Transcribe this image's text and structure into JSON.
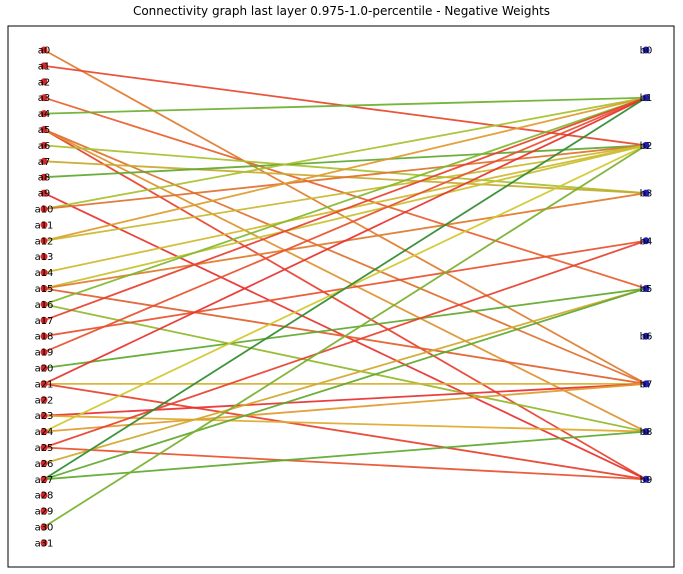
{
  "title": "Connectivity graph last layer 0.975-1.0-percentile - Negative Weights",
  "colors": {
    "left_node": "#d62728",
    "right_node": "#1f1fbf"
  },
  "left_nodes": [
    "a0",
    "a1",
    "a2",
    "a3",
    "a4",
    "a5",
    "a6",
    "a7",
    "a8",
    "a9",
    "a10",
    "a11",
    "a12",
    "a13",
    "a14",
    "a15",
    "a16",
    "a17",
    "a18",
    "a19",
    "a20",
    "a21",
    "a22",
    "a23",
    "a24",
    "a25",
    "a26",
    "a27",
    "a28",
    "a29",
    "a30",
    "a31"
  ],
  "right_nodes": [
    "b0",
    "b1",
    "b2",
    "b3",
    "b4",
    "b5",
    "b6",
    "b7",
    "b8",
    "b9"
  ],
  "edges": [
    {
      "from": 0,
      "to": 7,
      "color": "#e07b2c"
    },
    {
      "from": 1,
      "to": 2,
      "color": "#e8452c"
    },
    {
      "from": 3,
      "to": 5,
      "color": "#e8602c"
    },
    {
      "from": 4,
      "to": 1,
      "color": "#6ab02c"
    },
    {
      "from": 5,
      "to": 9,
      "color": "#e8402c"
    },
    {
      "from": 5,
      "to": 8,
      "color": "#e0902c"
    },
    {
      "from": 5,
      "to": 7,
      "color": "#e0702c"
    },
    {
      "from": 6,
      "to": 3,
      "color": "#a8c02c"
    },
    {
      "from": 7,
      "to": 3,
      "color": "#c8a82c"
    },
    {
      "from": 8,
      "to": 2,
      "color": "#5ea82c"
    },
    {
      "from": 9,
      "to": 9,
      "color": "#e8302c"
    },
    {
      "from": 10,
      "to": 1,
      "color": "#a8c02c"
    },
    {
      "from": 10,
      "to": 2,
      "color": "#e0702c"
    },
    {
      "from": 12,
      "to": 1,
      "color": "#e09a2c"
    },
    {
      "from": 12,
      "to": 2,
      "color": "#c8b82c"
    },
    {
      "from": 14,
      "to": 2,
      "color": "#d0b82c"
    },
    {
      "from": 15,
      "to": 2,
      "color": "#c8c02c"
    },
    {
      "from": 15,
      "to": 3,
      "color": "#e07a2c"
    },
    {
      "from": 15,
      "to": 7,
      "color": "#e0602c"
    },
    {
      "from": 16,
      "to": 1,
      "color": "#80b82c"
    },
    {
      "from": 16,
      "to": 8,
      "color": "#90b82c"
    },
    {
      "from": 17,
      "to": 1,
      "color": "#e8402c"
    },
    {
      "from": 18,
      "to": 4,
      "color": "#e8502c"
    },
    {
      "from": 19,
      "to": 1,
      "color": "#e8502c"
    },
    {
      "from": 20,
      "to": 5,
      "color": "#5ea82c"
    },
    {
      "from": 21,
      "to": 1,
      "color": "#e8302c"
    },
    {
      "from": 21,
      "to": 7,
      "color": "#d8b02c"
    },
    {
      "from": 21,
      "to": 9,
      "color": "#e8402c"
    },
    {
      "from": 23,
      "to": 7,
      "color": "#e8302c"
    },
    {
      "from": 23,
      "to": 8,
      "color": "#e0a82c"
    },
    {
      "from": 24,
      "to": 2,
      "color": "#d0c82c"
    },
    {
      "from": 24,
      "to": 7,
      "color": "#e09a2c"
    },
    {
      "from": 25,
      "to": 4,
      "color": "#e8402c"
    },
    {
      "from": 25,
      "to": 9,
      "color": "#e8502c"
    },
    {
      "from": 26,
      "to": 5,
      "color": "#d0a82c"
    },
    {
      "from": 27,
      "to": 1,
      "color": "#2e8b2c"
    },
    {
      "from": 27,
      "to": 5,
      "color": "#5ea82c"
    },
    {
      "from": 27,
      "to": 8,
      "color": "#5ea82c"
    },
    {
      "from": 30,
      "to": 2,
      "color": "#78b02c"
    }
  ]
}
